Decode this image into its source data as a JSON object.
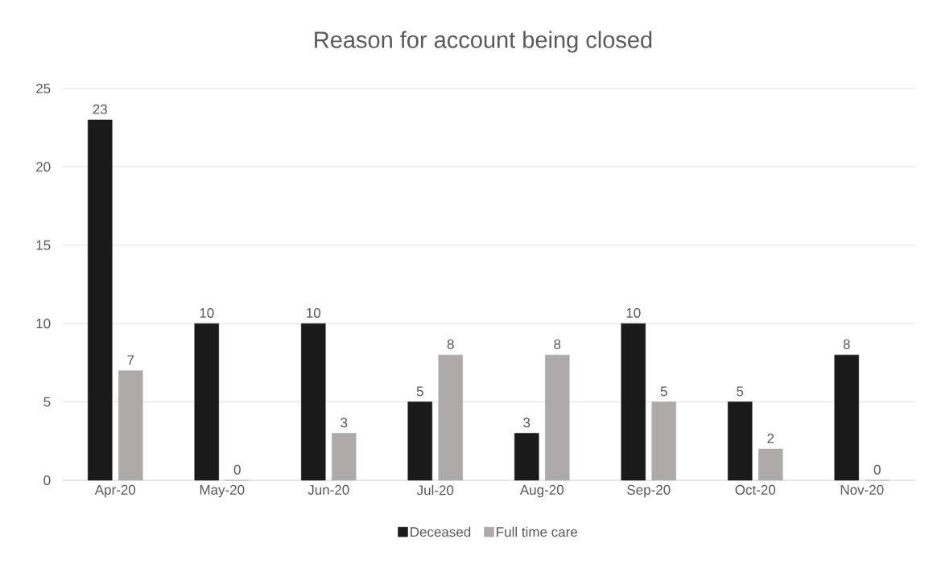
{
  "chart_data": {
    "type": "bar",
    "title": "Reason for account being closed",
    "categories": [
      "Apr-20",
      "May-20",
      "Jun-20",
      "Jul-20",
      "Aug-20",
      "Sep-20",
      "Oct-20",
      "Nov-20"
    ],
    "series": [
      {
        "name": "Deceased",
        "color": "#1a1a1a",
        "values": [
          23,
          10,
          10,
          5,
          3,
          10,
          5,
          8
        ]
      },
      {
        "name": "Full time care",
        "color": "#aeaaaa",
        "values": [
          7,
          0,
          3,
          8,
          8,
          5,
          2,
          0
        ]
      }
    ],
    "ylim": [
      0,
      25
    ],
    "yticks": [
      0,
      5,
      10,
      15,
      20,
      25
    ],
    "grid": "y",
    "legend": "bottom",
    "data_labels": true
  }
}
